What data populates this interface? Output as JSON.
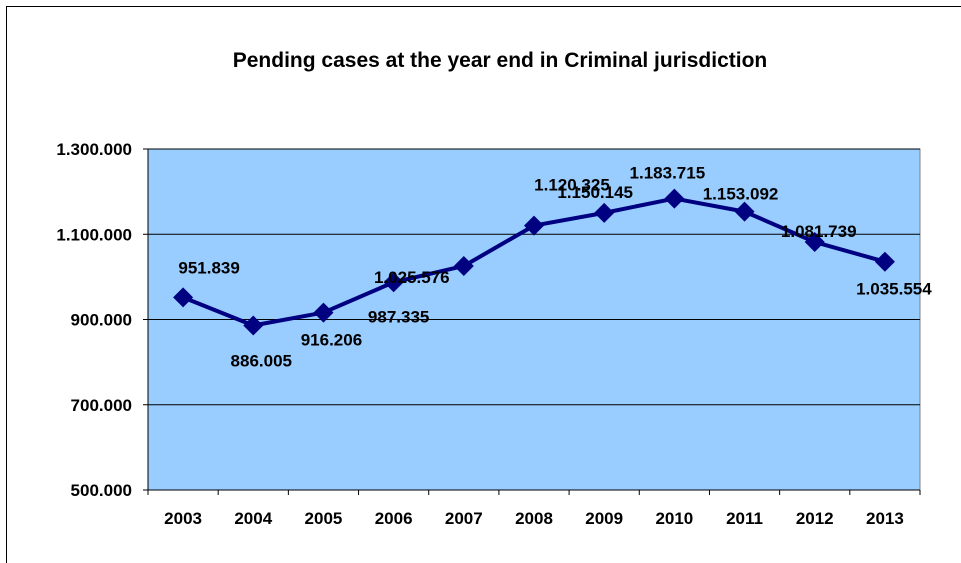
{
  "chart_data": {
    "type": "line",
    "title": "Pending cases at the year end in Criminal jurisdiction",
    "xlabel": "",
    "ylabel": "",
    "categories": [
      "2003",
      "2004",
      "2005",
      "2006",
      "2007",
      "2008",
      "2009",
      "2010",
      "2011",
      "2012",
      "2013"
    ],
    "series": [
      {
        "values": [
          951839,
          886005,
          916206,
          987335,
          1025576,
          1120325,
          1150145,
          1183715,
          1153092,
          1081739,
          1035554
        ],
        "labels": [
          "951.839",
          "886.005",
          "916.206",
          "987.335",
          "1.025.576",
          "1.120.325",
          "1.150.145",
          "1.183.715",
          "1.153.092",
          "1.081.739",
          "1.035.554"
        ],
        "color": "#000080",
        "marker": "diamond"
      }
    ],
    "ylim": [
      500000,
      1300000
    ],
    "yticks": [
      500000,
      700000,
      900000,
      1100000,
      1300000
    ],
    "ytick_labels": [
      "500.000",
      "700.000",
      "900.000",
      "1.100.000",
      "1.300.000"
    ],
    "grid": true,
    "legend": "none",
    "plot_background": "#99CCFF"
  }
}
